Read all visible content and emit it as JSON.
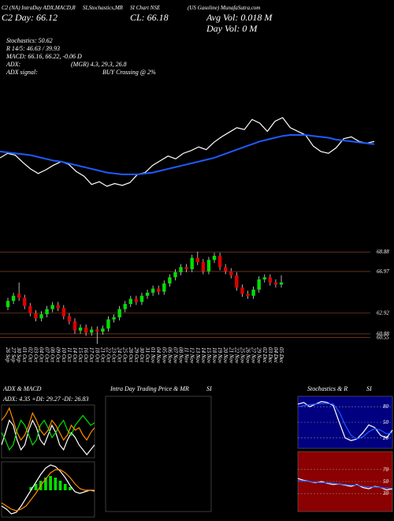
{
  "header": {
    "line1": [
      "C2 (NA) IntraDay ADX,MACD,R",
      "SI,Stochastics,MR",
      "SI Chart NSE",
      "(US Gasoline) MunafaSutra.com"
    ],
    "day": "C2 Day: 66.12",
    "close": "CL: 66.18",
    "avg_vol": "Avg Vol: 0.018  M",
    "day_vol": "Day Vol: 0  M",
    "stochastics": "Stochastics: 50.62",
    "rsi": "R 14/5: 46.63 / 39.93",
    "macd": "MACD: 66.16, 66.22, -0.06 D",
    "adx": "ADX:",
    "adx_values": "(MGR) 4.3, 29.3, 26.8",
    "adx_signal": "ADX  signal:",
    "adx_signal_value": "BUY Crossing @ 2%"
  },
  "chart_data": [
    {
      "type": "line",
      "series": [
        {
          "color": "#ffffff",
          "values": [
            64.1,
            64.6,
            64.4,
            63.6,
            62.9,
            62.4,
            62.8,
            63.3,
            63.7,
            63.4,
            62.6,
            62.1,
            61.2,
            61.5,
            61.0,
            61.3,
            61.1,
            61.4,
            62.3,
            62.5,
            63.3,
            63.8,
            64.3,
            64.0,
            64.6,
            64.9,
            65.3,
            65.0,
            65.8,
            66.4,
            66.9,
            67.4,
            67.2,
            68.3,
            67.9,
            67.0,
            68.1,
            68.5,
            67.4,
            67.0,
            66.6,
            65.4,
            64.8,
            64.6,
            65.2,
            66.2,
            66.4,
            65.9,
            65.7,
            65.9
          ]
        },
        {
          "color": "#1e5bff",
          "values": [
            64.8,
            64.7,
            64.6,
            64.5,
            64.4,
            64.2,
            64.0,
            63.8,
            63.7,
            63.5,
            63.3,
            63.1,
            62.9,
            62.7,
            62.5,
            62.4,
            62.3,
            62.3,
            62.3,
            62.4,
            62.5,
            62.7,
            62.9,
            63.1,
            63.3,
            63.5,
            63.7,
            63.9,
            64.1,
            64.4,
            64.7,
            65.0,
            65.3,
            65.6,
            65.9,
            66.1,
            66.3,
            66.5,
            66.6,
            66.6,
            66.6,
            66.5,
            66.4,
            66.3,
            66.1,
            66.0,
            65.9,
            65.8,
            65.7,
            65.6
          ]
        }
      ]
    },
    {
      "type": "candlestick",
      "grid": true,
      "up_color": "#00e000",
      "down_color": "#e00000",
      "ylim": [
        59.8,
        69.2
      ],
      "yticks": [
        68.88,
        66.97,
        62.92,
        60.88,
        60.55
      ],
      "categories": [
        "26 Sep",
        "27 Sep",
        "30 Sep",
        "01 Oct",
        "02 Oct",
        "03 Oct",
        "04 Oct",
        "07 Oct",
        "08 Oct",
        "09 Oct",
        "10 Oct",
        "11 Oct",
        "14 Oct",
        "15 Oct",
        "16 Oct",
        "17 Oct",
        "18 Oct",
        "21 Oct",
        "22 Oct",
        "23 Oct",
        "24 Oct",
        "25 Oct",
        "28 Oct",
        "29 Oct",
        "30 Oct",
        "31 Oct",
        "01 Nov",
        "04 Nov",
        "05 Nov",
        "06 Nov",
        "07 Nov",
        "08 Nov",
        "11 Nov",
        "12 Nov",
        "13 Nov",
        "14 Nov",
        "15 Nov",
        "18 Nov",
        "19 Nov",
        "20 Nov",
        "21 Nov",
        "22 Nov",
        "25 Nov",
        "26 Nov",
        "27 Nov",
        "29 Nov",
        "02 Dec",
        "03 Dec",
        "04 Dec",
        "05 Dec"
      ],
      "open": [
        63.5,
        64.1,
        64.8,
        64.4,
        63.6,
        62.9,
        62.4,
        62.8,
        63.3,
        63.7,
        63.4,
        62.6,
        62.1,
        61.2,
        61.5,
        61.0,
        61.3,
        61.1,
        61.4,
        62.3,
        62.5,
        63.3,
        63.8,
        64.3,
        64.0,
        64.6,
        64.9,
        65.3,
        65.0,
        65.8,
        66.4,
        66.9,
        67.4,
        67.2,
        68.3,
        67.9,
        67.0,
        68.1,
        68.5,
        67.4,
        67.0,
        66.6,
        65.4,
        64.8,
        64.6,
        65.2,
        66.2,
        66.4,
        65.9,
        65.7
      ],
      "high": [
        64.4,
        64.9,
        65.9,
        64.7,
        63.9,
        63.2,
        63.1,
        63.6,
        64.0,
        64.0,
        63.7,
        62.9,
        62.4,
        61.8,
        61.8,
        61.6,
        61.6,
        61.7,
        62.6,
        62.8,
        63.6,
        64.1,
        64.6,
        64.6,
        64.9,
        65.2,
        65.6,
        65.6,
        66.1,
        66.7,
        67.2,
        67.7,
        67.7,
        68.6,
        68.9,
        68.2,
        68.4,
        68.8,
        68.8,
        67.7,
        67.3,
        66.9,
        65.7,
        65.1,
        65.5,
        66.5,
        66.7,
        66.7,
        66.2,
        66.6
      ],
      "low": [
        63.2,
        63.8,
        64.1,
        63.3,
        62.6,
        62.1,
        62.1,
        62.5,
        63.0,
        63.1,
        62.3,
        61.8,
        60.9,
        60.9,
        60.7,
        60.7,
        59.9,
        60.8,
        61.1,
        62.0,
        62.2,
        63.0,
        63.5,
        63.7,
        63.7,
        64.3,
        64.6,
        64.7,
        64.7,
        65.5,
        66.1,
        66.6,
        66.9,
        66.9,
        67.6,
        66.7,
        66.7,
        67.8,
        67.1,
        66.7,
        66.3,
        65.1,
        64.5,
        64.3,
        64.3,
        64.9,
        65.9,
        65.6,
        65.4,
        65.4
      ],
      "close": [
        64.1,
        64.6,
        64.4,
        63.6,
        62.9,
        62.4,
        62.8,
        63.3,
        63.7,
        63.4,
        62.6,
        62.1,
        61.2,
        61.5,
        61.0,
        61.3,
        61.1,
        61.4,
        62.3,
        62.5,
        63.3,
        63.8,
        64.3,
        64.0,
        64.6,
        64.9,
        65.3,
        65.0,
        65.8,
        66.4,
        66.9,
        67.4,
        67.2,
        68.3,
        67.9,
        67.0,
        68.1,
        68.5,
        67.4,
        67.0,
        66.6,
        65.4,
        64.8,
        64.6,
        65.2,
        66.2,
        66.4,
        65.9,
        65.7,
        65.9
      ]
    },
    {
      "type": "line",
      "title": "ADX  & MACD",
      "subtitle": "ADX: 4.35  +DI: 29.27  -DI: 26.83",
      "series": [
        {
          "color": "#ffffff",
          "values": [
            20,
            25,
            30,
            28,
            22,
            18,
            20,
            26,
            30,
            27,
            22,
            20,
            24,
            28,
            25,
            20,
            18,
            22,
            25,
            23,
            20,
            18,
            16,
            18,
            20
          ]
        },
        {
          "color": "#00e000",
          "values": [
            25,
            22,
            18,
            20,
            26,
            30,
            28,
            24,
            20,
            22,
            28,
            30,
            27,
            23,
            25,
            28,
            30,
            26,
            24,
            28,
            30,
            32,
            30,
            28,
            29
          ]
        },
        {
          "color": "#ff8c00",
          "values": [
            30,
            32,
            35,
            30,
            25,
            22,
            24,
            28,
            33,
            30,
            26,
            24,
            26,
            30,
            28,
            25,
            22,
            24,
            28,
            26,
            27,
            24,
            22,
            25,
            27
          ]
        }
      ]
    },
    {
      "type": "line",
      "series": [
        {
          "color": "#00e000",
          "style": "bar",
          "values": [
            0,
            0,
            0,
            0,
            0,
            0,
            0.2,
            0.4,
            0.6,
            0.8,
            0.9,
            0.8,
            0.6,
            0.4,
            0.2,
            0,
            0,
            0,
            0,
            0
          ]
        },
        {
          "color": "#ffffff",
          "values": [
            -1,
            -1.2,
            -1.5,
            -1.4,
            -1,
            -0.5,
            0,
            0.5,
            1,
            1.4,
            1.6,
            1.5,
            1.2,
            0.8,
            0.3,
            -0.1,
            -0.2,
            -0.1,
            0,
            -0.05
          ]
        },
        {
          "color": "#ff8c00",
          "values": [
            -0.8,
            -1,
            -1.2,
            -1.3,
            -1.2,
            -1,
            -0.6,
            -0.2,
            0.3,
            0.7,
            1.1,
            1.3,
            1.3,
            1.1,
            0.8,
            0.4,
            0.1,
            0,
            0,
            0
          ]
        }
      ]
    },
    {
      "type": "empty",
      "title": "Intra Day Trading Price & MR",
      "subtitle": "SI"
    },
    {
      "type": "line",
      "title": "Stochastics & R",
      "subtitle": "SI",
      "background": "#000080",
      "ylim": [
        0,
        100
      ],
      "yticks": [
        20,
        50,
        80
      ],
      "series": [
        {
          "color": "#ffffff",
          "values": [
            85,
            88,
            80,
            85,
            90,
            88,
            82,
            50,
            20,
            15,
            18,
            30,
            45,
            40,
            25,
            20,
            35
          ]
        },
        {
          "color": "#1e5bff",
          "values": [
            80,
            82,
            84,
            85,
            86,
            86,
            85,
            70,
            45,
            25,
            18,
            22,
            32,
            38,
            35,
            28,
            30
          ]
        }
      ]
    },
    {
      "type": "line",
      "background": "#8b0000",
      "ylim": [
        0,
        100
      ],
      "yticks": [
        30,
        50,
        70
      ],
      "series": [
        {
          "color": "#ffffff",
          "values": [
            55,
            52,
            50,
            48,
            50,
            47,
            45,
            46,
            44,
            42,
            45,
            40,
            38,
            42,
            40,
            36,
            38
          ]
        },
        {
          "color": "#1e5bff",
          "values": [
            52,
            51,
            50,
            49,
            48,
            48,
            47,
            46,
            45,
            44,
            44,
            42,
            41,
            41,
            40,
            39,
            39
          ]
        }
      ]
    }
  ]
}
